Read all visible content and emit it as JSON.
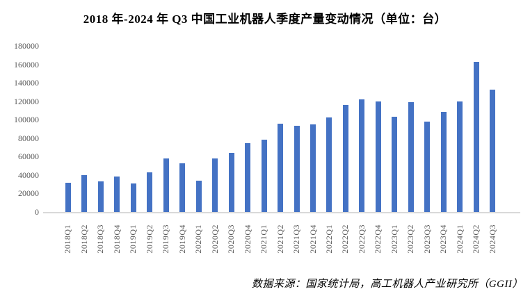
{
  "title": "2018 年-2024 年 Q3 中国工业机器人季度产量变动情况（单位：台）",
  "source_note": "数据来源：国家统计局，高工机器人产业研究所（GGII）",
  "chart_data": {
    "type": "bar",
    "title": "2018 年-2024 年 Q3 中国工业机器人季度产量变动情况（单位：台）",
    "unit": "台",
    "categories": [
      "2018Q1",
      "2018Q2",
      "2018Q3",
      "2018Q4",
      "2019Q1",
      "2019Q2",
      "2019Q3",
      "2019Q4",
      "2020Q1",
      "2020Q2",
      "2020Q3",
      "2020Q4",
      "2021Q1",
      "2021Q2",
      "2021Q3",
      "2021Q4",
      "2022Q1",
      "2022Q2",
      "2022Q3",
      "2022Q4",
      "2023Q1",
      "2023Q2",
      "2023Q3",
      "2023Q4",
      "2024Q1",
      "2024Q2",
      "2024Q3"
    ],
    "values": [
      32000,
      40300,
      33500,
      38700,
      31200,
      42600,
      58000,
      53100,
      34200,
      57900,
      64400,
      74200,
      78700,
      96000,
      93100,
      95200,
      102300,
      115800,
      122300,
      119400,
      103300,
      118800,
      98200,
      108500,
      120000,
      162700,
      132800
    ],
    "xlabel": "",
    "ylabel": "",
    "ylim": [
      0,
      180000
    ],
    "yticks": [
      0,
      20000,
      40000,
      60000,
      80000,
      100000,
      120000,
      140000,
      160000,
      180000
    ],
    "grid": false,
    "legend_position": "none",
    "bar_color": "#4472C4",
    "axis_text_color": "#595959",
    "axis_line_color": "#D9D9D9",
    "source_note": "数据来源：国家统计局，高工机器人产业研究所（GGII）"
  }
}
